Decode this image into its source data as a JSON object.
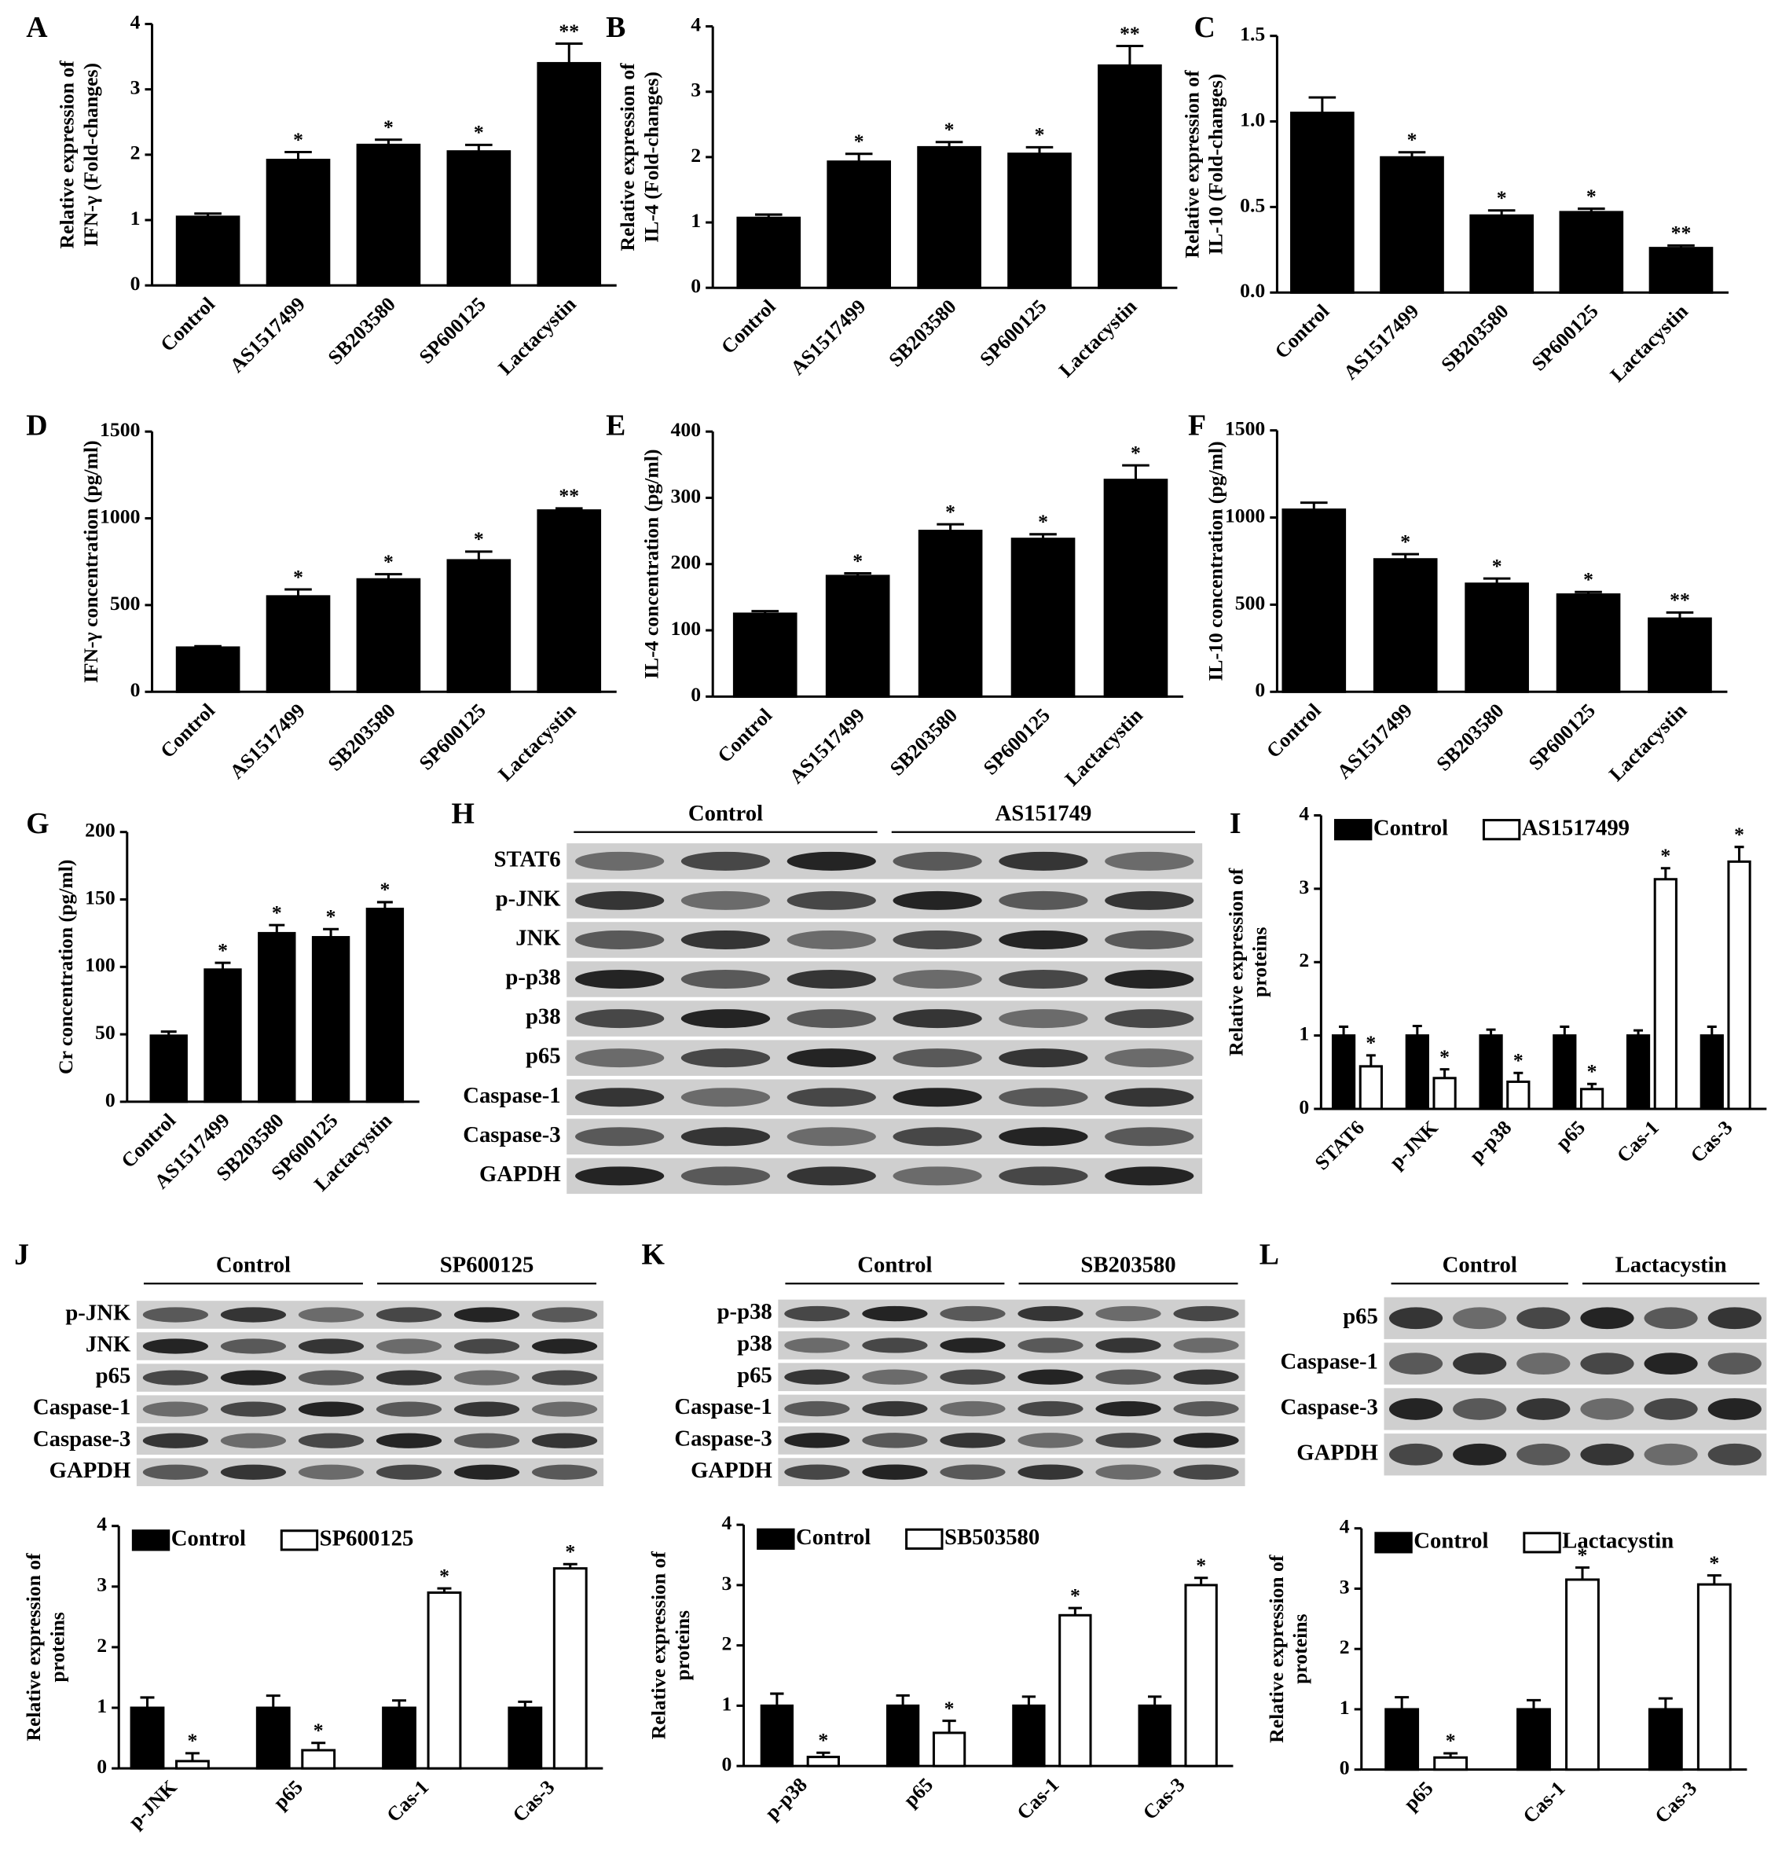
{
  "chart_data": [
    {
      "type": "bar",
      "panel": "A",
      "ylabel": [
        "Relative expression of",
        "IFN-γ (Fold-changes)"
      ],
      "categories": [
        "Control",
        "AS1517499",
        "SB203580",
        "SP600125",
        "Lactacystin"
      ],
      "values": [
        1.05,
        1.92,
        2.15,
        2.05,
        3.4
      ],
      "errors": [
        0.05,
        0.12,
        0.08,
        0.1,
        0.3
      ],
      "annotations": [
        null,
        "*",
        "*",
        "*",
        "**"
      ],
      "color": "#000000",
      "ylim": [
        0,
        4
      ],
      "yticks": [
        0,
        1,
        2,
        3,
        4
      ]
    },
    {
      "type": "bar",
      "panel": "B",
      "ylabel": [
        "Relative expression of",
        "IL-4 (Fold-changes)"
      ],
      "categories": [
        "Control",
        "AS1517499",
        "SB203580",
        "SP600125",
        "Lactacystin"
      ],
      "values": [
        1.07,
        1.93,
        2.15,
        2.05,
        3.4
      ],
      "errors": [
        0.05,
        0.12,
        0.08,
        0.1,
        0.3
      ],
      "annotations": [
        null,
        "*",
        "*",
        "*",
        "**"
      ],
      "color": "#000000",
      "ylim": [
        0,
        4
      ],
      "yticks": [
        0,
        1,
        2,
        3,
        4
      ]
    },
    {
      "type": "bar",
      "panel": "C",
      "ylabel": [
        "Relative expression of",
        "IL-10 (Fold-changes)"
      ],
      "categories": [
        "Control",
        "AS1517499",
        "SB203580",
        "SP600125",
        "Lactacystin"
      ],
      "values": [
        1.05,
        0.79,
        0.45,
        0.47,
        0.26
      ],
      "errors": [
        0.09,
        0.03,
        0.03,
        0.02,
        0.015
      ],
      "annotations": [
        null,
        "*",
        "*",
        "*",
        "**"
      ],
      "color": "#000000",
      "ylim": [
        0,
        1.5
      ],
      "yticks": [
        {
          "value": 0,
          "label": "0.0"
        },
        0.5,
        {
          "value": 1,
          "label": "1.0"
        },
        1.5
      ]
    },
    {
      "type": "bar",
      "panel": "D",
      "ylabel": [
        "IFN-γ concentration (pg/ml)"
      ],
      "categories": [
        "Control",
        "AS1517499",
        "SB203580",
        "SP600125",
        "Lactacystin"
      ],
      "values": [
        255,
        550,
        648,
        758,
        1045
      ],
      "errors": [
        8,
        40,
        30,
        50,
        12
      ],
      "annotations": [
        null,
        "*",
        "*",
        "*",
        "**"
      ],
      "color": "#000000",
      "ylim": [
        0,
        1500
      ],
      "yticks": [
        0,
        500,
        1000,
        1500
      ]
    },
    {
      "type": "bar",
      "panel": "E",
      "ylabel": [
        "IL-4 concentration (pg/ml)"
      ],
      "categories": [
        "Control",
        "AS1517499",
        "SB203580",
        "SP600125",
        "Lactacystin"
      ],
      "values": [
        125,
        182,
        250,
        238,
        327
      ],
      "errors": [
        4,
        4,
        10,
        7,
        22
      ],
      "annotations": [
        null,
        "*",
        "*",
        "*",
        "*"
      ],
      "color": "#000000",
      "ylim": [
        0,
        400
      ],
      "yticks": [
        0,
        100,
        200,
        300,
        400
      ]
    },
    {
      "type": "bar",
      "panel": "F",
      "ylabel": [
        "IL-10 concentration (pg/ml)"
      ],
      "categories": [
        "Control",
        "AS1517499",
        "SB203580",
        "SP600125",
        "Lactacystin"
      ],
      "values": [
        1045,
        760,
        620,
        558,
        420
      ],
      "errors": [
        40,
        30,
        30,
        15,
        35
      ],
      "annotations": [
        null,
        "*",
        "*",
        "*",
        "**"
      ],
      "color": "#000000",
      "ylim": [
        0,
        1500
      ],
      "yticks": [
        0,
        500,
        1000,
        1500
      ]
    },
    {
      "type": "bar",
      "panel": "G",
      "ylabel": [
        "Cr concentration (pg/ml)"
      ],
      "categories": [
        "Control",
        "AS1517499",
        "SB203580",
        "SP600125",
        "Lactacystin"
      ],
      "values": [
        49,
        98,
        125,
        122,
        143
      ],
      "errors": [
        3,
        5,
        6,
        6,
        5
      ],
      "annotations": [
        null,
        "*",
        "*",
        "*",
        "*"
      ],
      "color": "#000000",
      "ylim": [
        0,
        200
      ],
      "yticks": [
        0,
        50,
        100,
        150,
        200
      ]
    },
    {
      "type": "grouped_bar",
      "panel": "I",
      "ylabel": [
        "Relative expression of",
        "proteins"
      ],
      "categories": [
        "STAT6",
        "p-JNK",
        "p-p38",
        "p65",
        "Cas-1",
        "Cas-3"
      ],
      "series": [
        {
          "name": "Control",
          "color": "#000000",
          "values": [
            1,
            1,
            1,
            1,
            1,
            1
          ],
          "errors": [
            0.12,
            0.13,
            0.08,
            0.12,
            0.07,
            0.12
          ]
        },
        {
          "name": "AS1517499",
          "color": "#ffffff",
          "values": [
            0.58,
            0.42,
            0.37,
            0.27,
            3.13,
            3.37
          ],
          "errors": [
            0.15,
            0.12,
            0.12,
            0.07,
            0.15,
            0.2
          ],
          "annotations": [
            "*",
            "*",
            "*",
            "*",
            "*",
            "*"
          ]
        }
      ],
      "ylim": [
        0,
        4
      ],
      "yticks": [
        0,
        1,
        2,
        3,
        4
      ]
    },
    {
      "type": "grouped_bar",
      "ylabel": [
        "Relative expression of",
        "proteins"
      ],
      "categories": [
        "p-JNK",
        "p65",
        "Cas-1",
        "Cas-3"
      ],
      "series": [
        {
          "name": "Control",
          "color": "#000000",
          "values": [
            1,
            1,
            1,
            1
          ],
          "errors": [
            0.17,
            0.2,
            0.12,
            0.1
          ]
        },
        {
          "name": "SP600125",
          "color": "#ffffff",
          "values": [
            0.12,
            0.3,
            2.9,
            3.3
          ],
          "errors": [
            0.13,
            0.12,
            0.07,
            0.07
          ],
          "annotations": [
            "*",
            "*",
            "*",
            "*"
          ]
        }
      ],
      "ylim": [
        0,
        4
      ],
      "yticks": [
        0,
        1,
        2,
        3,
        4
      ]
    },
    {
      "type": "grouped_bar",
      "ylabel": [
        "Relative expression of",
        "proteins"
      ],
      "categories": [
        "p-p38",
        "p65",
        "Cas-1",
        "Cas-3"
      ],
      "series": [
        {
          "name": "Control",
          "color": "#000000",
          "values": [
            1,
            1,
            1,
            1
          ],
          "errors": [
            0.2,
            0.17,
            0.15,
            0.15
          ]
        },
        {
          "name": "SB503580",
          "color": "#ffffff",
          "values": [
            0.15,
            0.55,
            2.5,
            3.0
          ],
          "errors": [
            0.07,
            0.2,
            0.12,
            0.12
          ],
          "annotations": [
            "*",
            "*",
            "*",
            "*"
          ]
        }
      ],
      "ylim": [
        0,
        4
      ],
      "yticks": [
        0,
        1,
        2,
        3,
        4
      ]
    },
    {
      "type": "grouped_bar",
      "ylabel": [
        "Relative expression of",
        "proteins"
      ],
      "categories": [
        "p65",
        "Cas-1",
        "Cas-3"
      ],
      "series": [
        {
          "name": "Control",
          "color": "#000000",
          "values": [
            1,
            1,
            1
          ],
          "errors": [
            0.2,
            0.15,
            0.18
          ]
        },
        {
          "name": "Lactacystin",
          "color": "#ffffff",
          "values": [
            0.2,
            3.15,
            3.07
          ],
          "errors": [
            0.07,
            0.2,
            0.15
          ],
          "annotations": [
            "*",
            "*",
            "*"
          ]
        }
      ],
      "ylim": [
        0,
        4
      ],
      "yticks": [
        0,
        1,
        2,
        3,
        4
      ]
    }
  ],
  "blots": [
    {
      "panel": "H",
      "groups": [
        "Control",
        "AS151749"
      ],
      "rows": [
        "STAT6",
        "p-JNK",
        "JNK",
        "p-p38",
        "p38",
        "p65",
        "Caspase-1",
        "Caspase-3",
        "GAPDH"
      ]
    },
    {
      "panel": "J",
      "groups": [
        "Control",
        "SP600125"
      ],
      "rows": [
        "p-JNK",
        "JNK",
        "p65",
        "Caspase-1",
        "Caspase-3",
        "GAPDH"
      ]
    },
    {
      "panel": "K",
      "groups": [
        "Control",
        "SB203580"
      ],
      "rows": [
        "p-p38",
        "p38",
        "p65",
        "Caspase-1",
        "Caspase-3",
        "GAPDH"
      ]
    },
    {
      "panel": "L",
      "groups": [
        "Control",
        "Lactacystin"
      ],
      "rows": [
        "p65",
        "Caspase-1",
        "Caspase-3",
        "GAPDH"
      ]
    }
  ]
}
